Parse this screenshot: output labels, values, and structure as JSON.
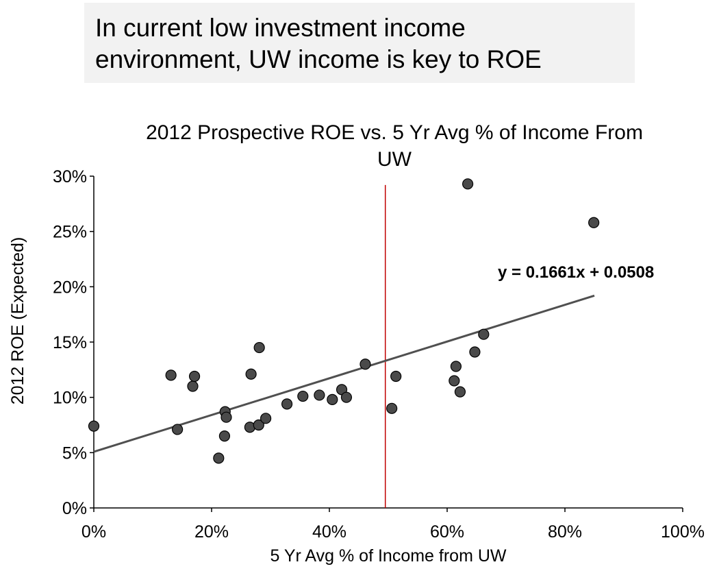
{
  "headline": {
    "line1": "In current low investment income",
    "line2": "environment, UW income is key to ROE"
  },
  "colors": {
    "headline_bg": "#f2f2f2",
    "marker_fill": "#4a4a4a",
    "marker_stroke": "#000000",
    "trendline": "#505050",
    "reference_line": "#c00000",
    "axis": "#000000"
  },
  "chart_data": {
    "type": "scatter",
    "title_lines": [
      "2012 Prospective ROE vs. 5 Yr Avg % of Income From",
      "UW"
    ],
    "xlabel": "5 Yr Avg % of Income from UW",
    "ylabel": "2012 ROE (Expected)",
    "xlim": [
      0,
      1.0
    ],
    "ylim": [
      0,
      0.3
    ],
    "x_ticks": [
      {
        "value": 0.0,
        "label": "0%"
      },
      {
        "value": 0.2,
        "label": "20%"
      },
      {
        "value": 0.4,
        "label": "40%"
      },
      {
        "value": 0.6,
        "label": "60%"
      },
      {
        "value": 0.8,
        "label": "80%"
      },
      {
        "value": 1.0,
        "label": "100%"
      }
    ],
    "y_ticks": [
      {
        "value": 0.0,
        "label": "0%"
      },
      {
        "value": 0.05,
        "label": "5%"
      },
      {
        "value": 0.1,
        "label": "10%"
      },
      {
        "value": 0.15,
        "label": "15%"
      },
      {
        "value": 0.2,
        "label": "20%"
      },
      {
        "value": 0.25,
        "label": "25%"
      },
      {
        "value": 0.3,
        "label": "30%"
      }
    ],
    "grid": false,
    "legend": "none",
    "points": [
      {
        "x": 0.0,
        "y": 0.074
      },
      {
        "x": 0.131,
        "y": 0.12
      },
      {
        "x": 0.142,
        "y": 0.071
      },
      {
        "x": 0.168,
        "y": 0.11
      },
      {
        "x": 0.171,
        "y": 0.119
      },
      {
        "x": 0.212,
        "y": 0.045
      },
      {
        "x": 0.222,
        "y": 0.065
      },
      {
        "x": 0.223,
        "y": 0.087
      },
      {
        "x": 0.225,
        "y": 0.082
      },
      {
        "x": 0.265,
        "y": 0.073
      },
      {
        "x": 0.267,
        "y": 0.121
      },
      {
        "x": 0.28,
        "y": 0.075
      },
      {
        "x": 0.281,
        "y": 0.145
      },
      {
        "x": 0.292,
        "y": 0.081
      },
      {
        "x": 0.328,
        "y": 0.094
      },
      {
        "x": 0.355,
        "y": 0.101
      },
      {
        "x": 0.383,
        "y": 0.102
      },
      {
        "x": 0.405,
        "y": 0.098
      },
      {
        "x": 0.421,
        "y": 0.107
      },
      {
        "x": 0.429,
        "y": 0.1
      },
      {
        "x": 0.461,
        "y": 0.13
      },
      {
        "x": 0.506,
        "y": 0.09
      },
      {
        "x": 0.513,
        "y": 0.119
      },
      {
        "x": 0.612,
        "y": 0.115
      },
      {
        "x": 0.615,
        "y": 0.128
      },
      {
        "x": 0.622,
        "y": 0.105
      },
      {
        "x": 0.635,
        "y": 0.293
      },
      {
        "x": 0.647,
        "y": 0.141
      },
      {
        "x": 0.662,
        "y": 0.157
      },
      {
        "x": 0.849,
        "y": 0.258
      }
    ],
    "trendline": {
      "slope": 0.1661,
      "intercept": 0.0508,
      "x_range": [
        0.0,
        0.85
      ],
      "equation": "y = 0.1661x + 0.0508"
    },
    "reference_line": {
      "x": 0.495,
      "y_range": [
        0.0,
        0.292
      ]
    }
  }
}
